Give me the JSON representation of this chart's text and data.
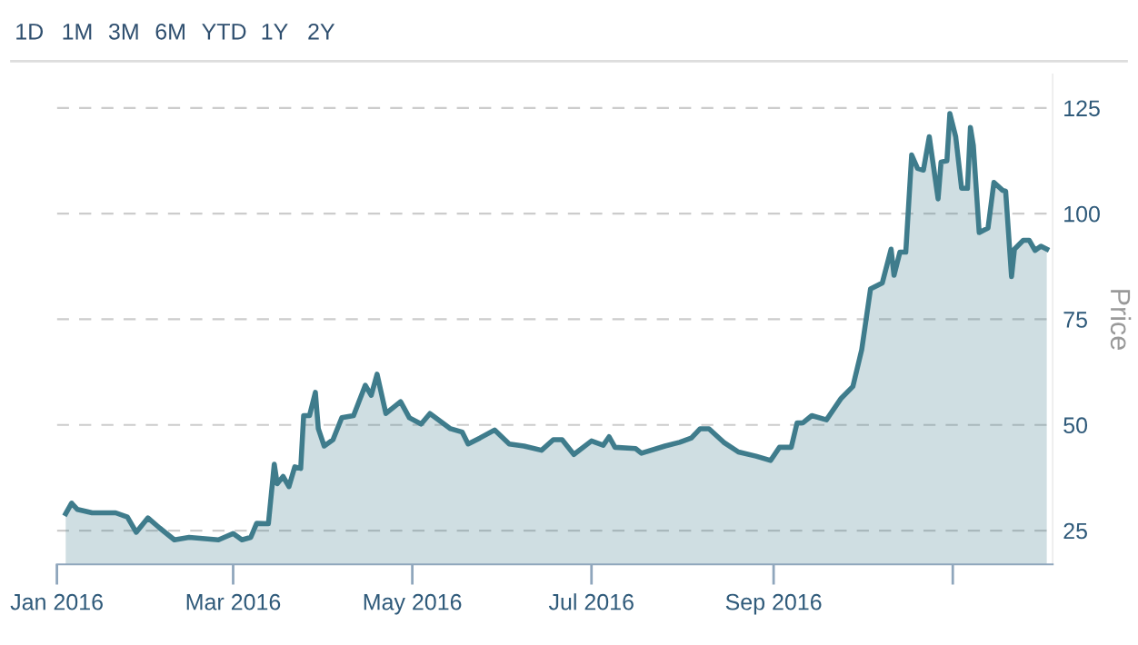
{
  "chart_data": {
    "type": "area",
    "ylabel": "Price",
    "annotations": [
      "1D",
      "1M",
      "3M",
      "6M",
      "YTD",
      "1Y",
      "2Y"
    ],
    "x": [
      "2016-01-04",
      "2016-01-06",
      "2016-01-08",
      "2016-01-13",
      "2016-01-21",
      "2016-01-25",
      "2016-01-28",
      "2016-02-01",
      "2016-02-05",
      "2016-02-10",
      "2016-02-15",
      "2016-02-25",
      "2016-03-01",
      "2016-03-04",
      "2016-03-07",
      "2016-03-09",
      "2016-03-13",
      "2016-03-15",
      "2016-03-16",
      "2016-03-18",
      "2016-03-20",
      "2016-03-22",
      "2016-03-24",
      "2016-03-25",
      "2016-03-27",
      "2016-03-29",
      "2016-03-30",
      "2016-04-01",
      "2016-04-04",
      "2016-04-07",
      "2016-04-11",
      "2016-04-15",
      "2016-04-17",
      "2016-04-19",
      "2016-04-22",
      "2016-04-27",
      "2016-04-30",
      "2016-05-04",
      "2016-05-07",
      "2016-05-14",
      "2016-05-18",
      "2016-05-20",
      "2016-05-24",
      "2016-05-29",
      "2016-06-03",
      "2016-06-08",
      "2016-06-14",
      "2016-06-18",
      "2016-06-21",
      "2016-06-25",
      "2016-07-01",
      "2016-07-05",
      "2016-07-07",
      "2016-07-09",
      "2016-07-16",
      "2016-07-18",
      "2016-07-26",
      "2016-07-31",
      "2016-08-04",
      "2016-08-07",
      "2016-08-10",
      "2016-08-15",
      "2016-08-20",
      "2016-08-26",
      "2016-08-31",
      "2016-09-03",
      "2016-09-07",
      "2016-09-09",
      "2016-09-11",
      "2016-09-14",
      "2016-09-19",
      "2016-09-24",
      "2016-09-28",
      "2016-10-01",
      "2016-10-04",
      "2016-10-06",
      "2016-10-08",
      "2016-10-11",
      "2016-10-12",
      "2016-10-14",
      "2016-10-16",
      "2016-10-18",
      "2016-10-20",
      "2016-10-22",
      "2016-10-24",
      "2016-10-27",
      "2016-10-28",
      "2016-10-30",
      "2016-10-31",
      "2016-11-02",
      "2016-11-04",
      "2016-11-06",
      "2016-11-07",
      "2016-11-08",
      "2016-11-10",
      "2016-11-13",
      "2016-11-15",
      "2016-11-18",
      "2016-11-19",
      "2016-11-21",
      "2016-11-22",
      "2016-11-25",
      "2016-11-27",
      "2016-11-29",
      "2016-12-01",
      "2016-12-03"
    ],
    "series": [
      {
        "color": "#3f7c8c",
        "values": [
          29,
          31.5,
          30,
          29.2,
          29.2,
          28.2,
          24.6,
          28,
          25.6,
          22.8,
          23.4,
          22.8,
          24.3,
          22.8,
          23.4,
          26.7,
          26.6,
          40.7,
          36.1,
          37.8,
          35.4,
          40.1,
          39.7,
          52.2,
          52.2,
          57.7,
          49.1,
          45,
          46.5,
          51.7,
          52.2,
          59.4,
          57,
          62,
          52.7,
          55.5,
          51.7,
          50.2,
          52.7,
          49.1,
          48.3,
          45.5,
          46.9,
          48.8,
          45.5,
          45,
          44,
          46.5,
          46.5,
          43,
          46.2,
          45.2,
          47.2,
          44.7,
          44.4,
          43.3,
          45,
          45.9,
          46.9,
          49.1,
          49.1,
          45.9,
          43.6,
          42.6,
          41.6,
          44.7,
          44.7,
          50.5,
          50.5,
          52.2,
          51.2,
          56.3,
          59.1,
          67.8,
          82.2,
          82.9,
          83.6,
          91.6,
          85.4,
          90.9,
          90.9,
          113.9,
          110.7,
          110.3,
          118.2,
          103.5,
          112.2,
          112.5,
          123.7,
          118.2,
          106,
          106,
          120.4,
          116.1,
          95.5,
          96.6,
          107.4,
          105.5,
          105.3,
          85.1,
          91.6,
          93.7,
          93.7,
          91.3,
          92.3,
          91.6
        ]
      }
    ],
    "xlim": [
      "2016-01-01",
      "2016-12-05"
    ],
    "xticks": [
      {
        "value": "2016-01-01",
        "label": "Jan 2016"
      },
      {
        "value": "2016-03-01",
        "label": "Mar 2016"
      },
      {
        "value": "2016-05-01",
        "label": "May 2016"
      },
      {
        "value": "2016-07-01",
        "label": "Jul 2016"
      },
      {
        "value": "2016-09-01",
        "label": "Sep 2016"
      },
      {
        "value": "2016-11-01",
        "label": null
      }
    ],
    "ylim": [
      17,
      133
    ],
    "yticks": [
      25,
      50,
      75,
      100,
      125
    ],
    "grid": "y",
    "line_style": "solid",
    "legend": false
  }
}
